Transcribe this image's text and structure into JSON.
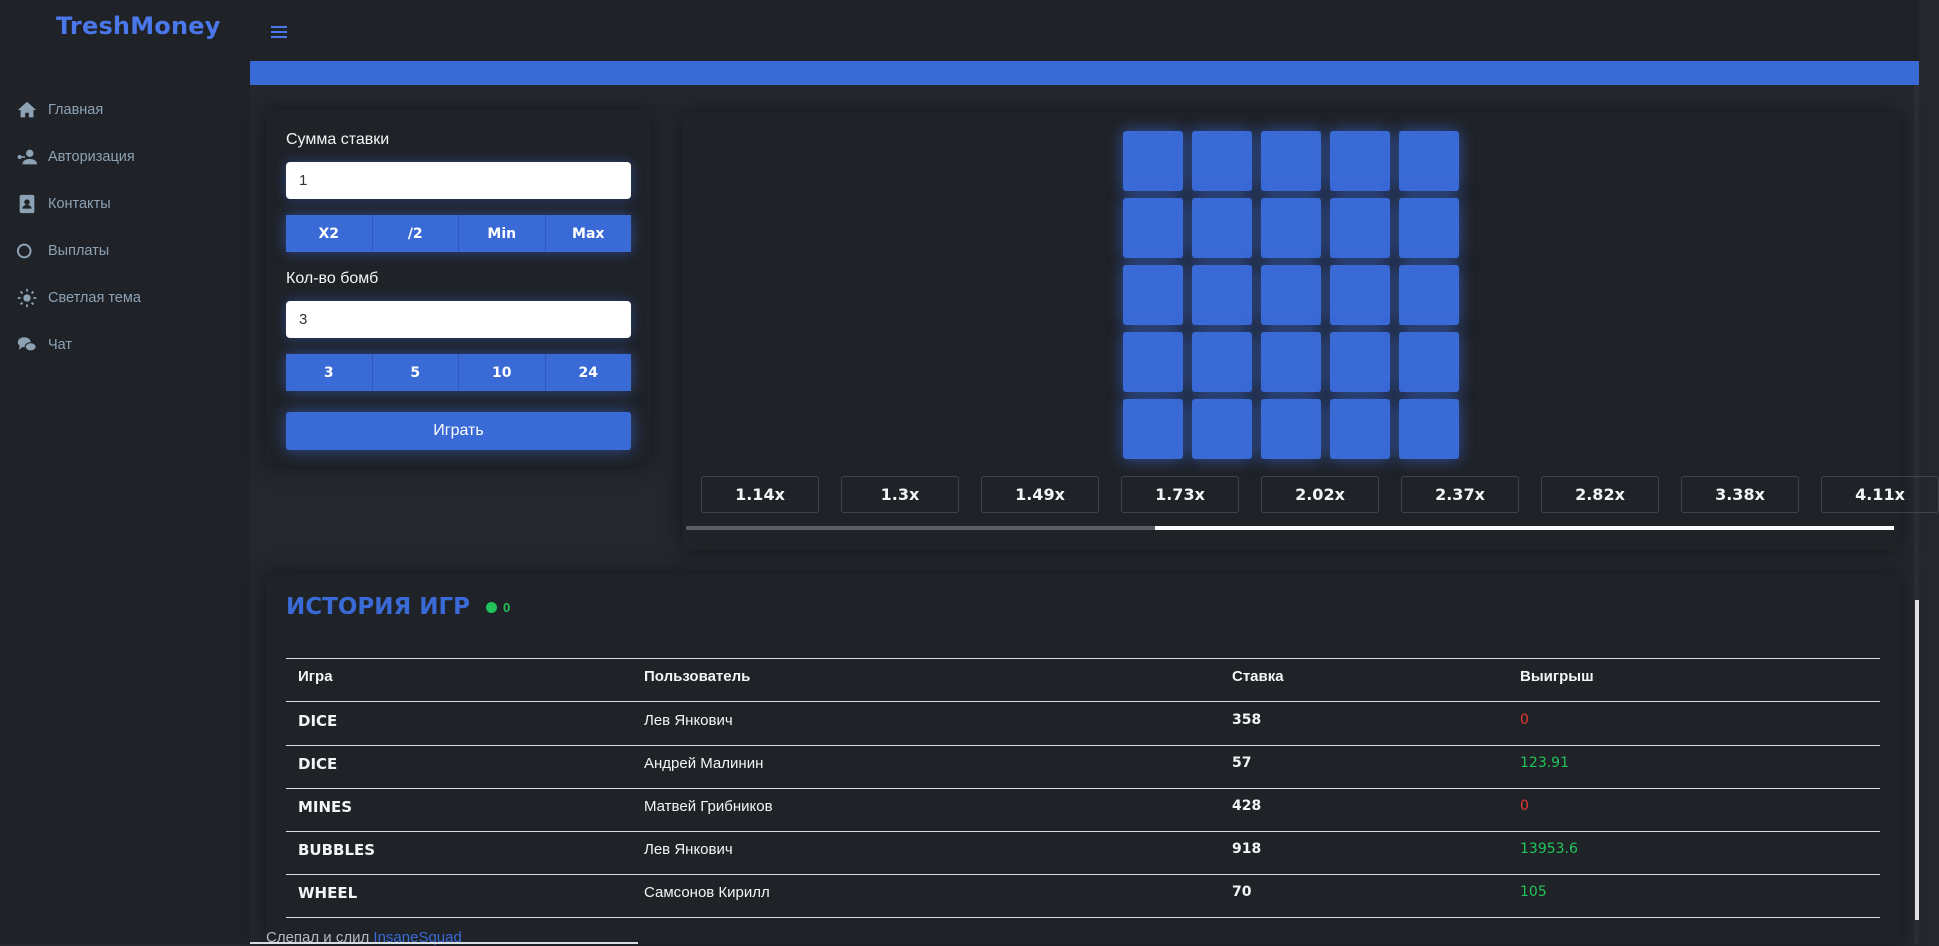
{
  "app": {
    "brand": "TreshMoney"
  },
  "colors": {
    "accent": "#3a6ad6",
    "win": "#21c45a",
    "loss": "#e53935",
    "bg": "#24272d",
    "panel": "#1f2227"
  },
  "sidebar": {
    "items": [
      {
        "label": "Главная",
        "icon": "home-icon"
      },
      {
        "label": "Авторизация",
        "icon": "user-key-icon"
      },
      {
        "label": "Контакты",
        "icon": "contact-book-icon"
      },
      {
        "label": "Выплаты",
        "icon": "coins-icon"
      },
      {
        "label": "Светлая тема",
        "icon": "sun-icon"
      },
      {
        "label": "Чат",
        "icon": "chat-bubbles-icon"
      }
    ]
  },
  "bet": {
    "amount_label": "Сумма ставки",
    "amount_value": "1",
    "amount_buttons": [
      "X2",
      "/2",
      "Min",
      "Max"
    ],
    "bombs_label": "Кол-во бомб",
    "bombs_value": "3",
    "bombs_buttons": [
      "3",
      "5",
      "10",
      "24"
    ],
    "play_label": "Играть"
  },
  "board": {
    "rows": 5,
    "cols": 5
  },
  "multipliers": [
    "1.14x",
    "1.3x",
    "1.49x",
    "1.73x",
    "2.02x",
    "2.37x",
    "2.82x",
    "3.38x",
    "4.11x"
  ],
  "history": {
    "title": "ИСТОРИЯ ИГР",
    "online_count": "0",
    "columns": [
      "Игра",
      "Пользователь",
      "Ставка",
      "Выигрыш"
    ],
    "rows": [
      {
        "game": "DICE",
        "user": "Лев Янкович",
        "bet": "358",
        "win": "0",
        "result": "loss"
      },
      {
        "game": "DICE",
        "user": "Андрей Малинин",
        "bet": "57",
        "win": "123.91",
        "result": "win"
      },
      {
        "game": "MINES",
        "user": "Матвей Грибников",
        "bet": "428",
        "win": "0",
        "result": "loss"
      },
      {
        "game": "BUBBLES",
        "user": "Лев Янкович",
        "bet": "918",
        "win": "13953.6",
        "result": "win"
      },
      {
        "game": "WHEEL",
        "user": "Самсонов Кирилл",
        "bet": "70",
        "win": "105",
        "result": "win"
      }
    ]
  },
  "footer": {
    "text": "Слепал и слил ",
    "link": "InsaneSquad"
  }
}
